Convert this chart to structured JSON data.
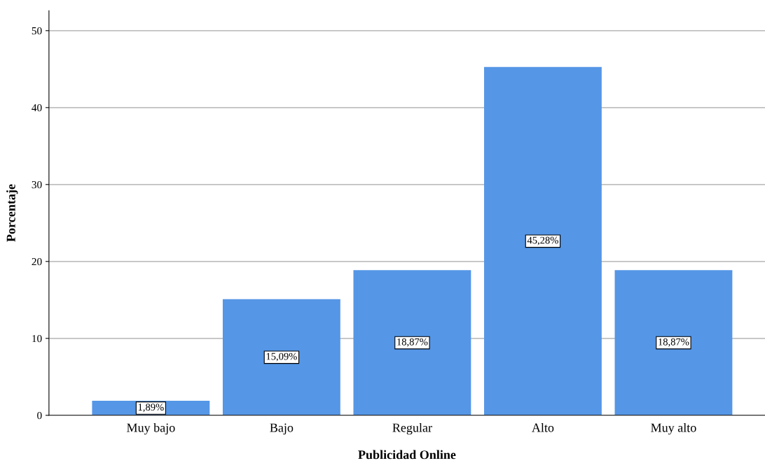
{
  "chart_data": {
    "type": "bar",
    "xlabel": "Publicidad Online",
    "ylabel": "Porcentaje",
    "categories": [
      "Muy bajo",
      "Bajo",
      "Regular",
      "Alto",
      "Muy alto"
    ],
    "values": [
      1.89,
      15.09,
      18.87,
      45.28,
      18.87
    ],
    "value_labels": [
      "1,89%",
      "15,09%",
      "18,87%",
      "45,28%",
      "18,87%"
    ],
    "color": "#5596e6",
    "ylim": [
      0,
      52.6
    ],
    "yticks": [
      0,
      10,
      20,
      30,
      40,
      50
    ],
    "grid": "y"
  }
}
